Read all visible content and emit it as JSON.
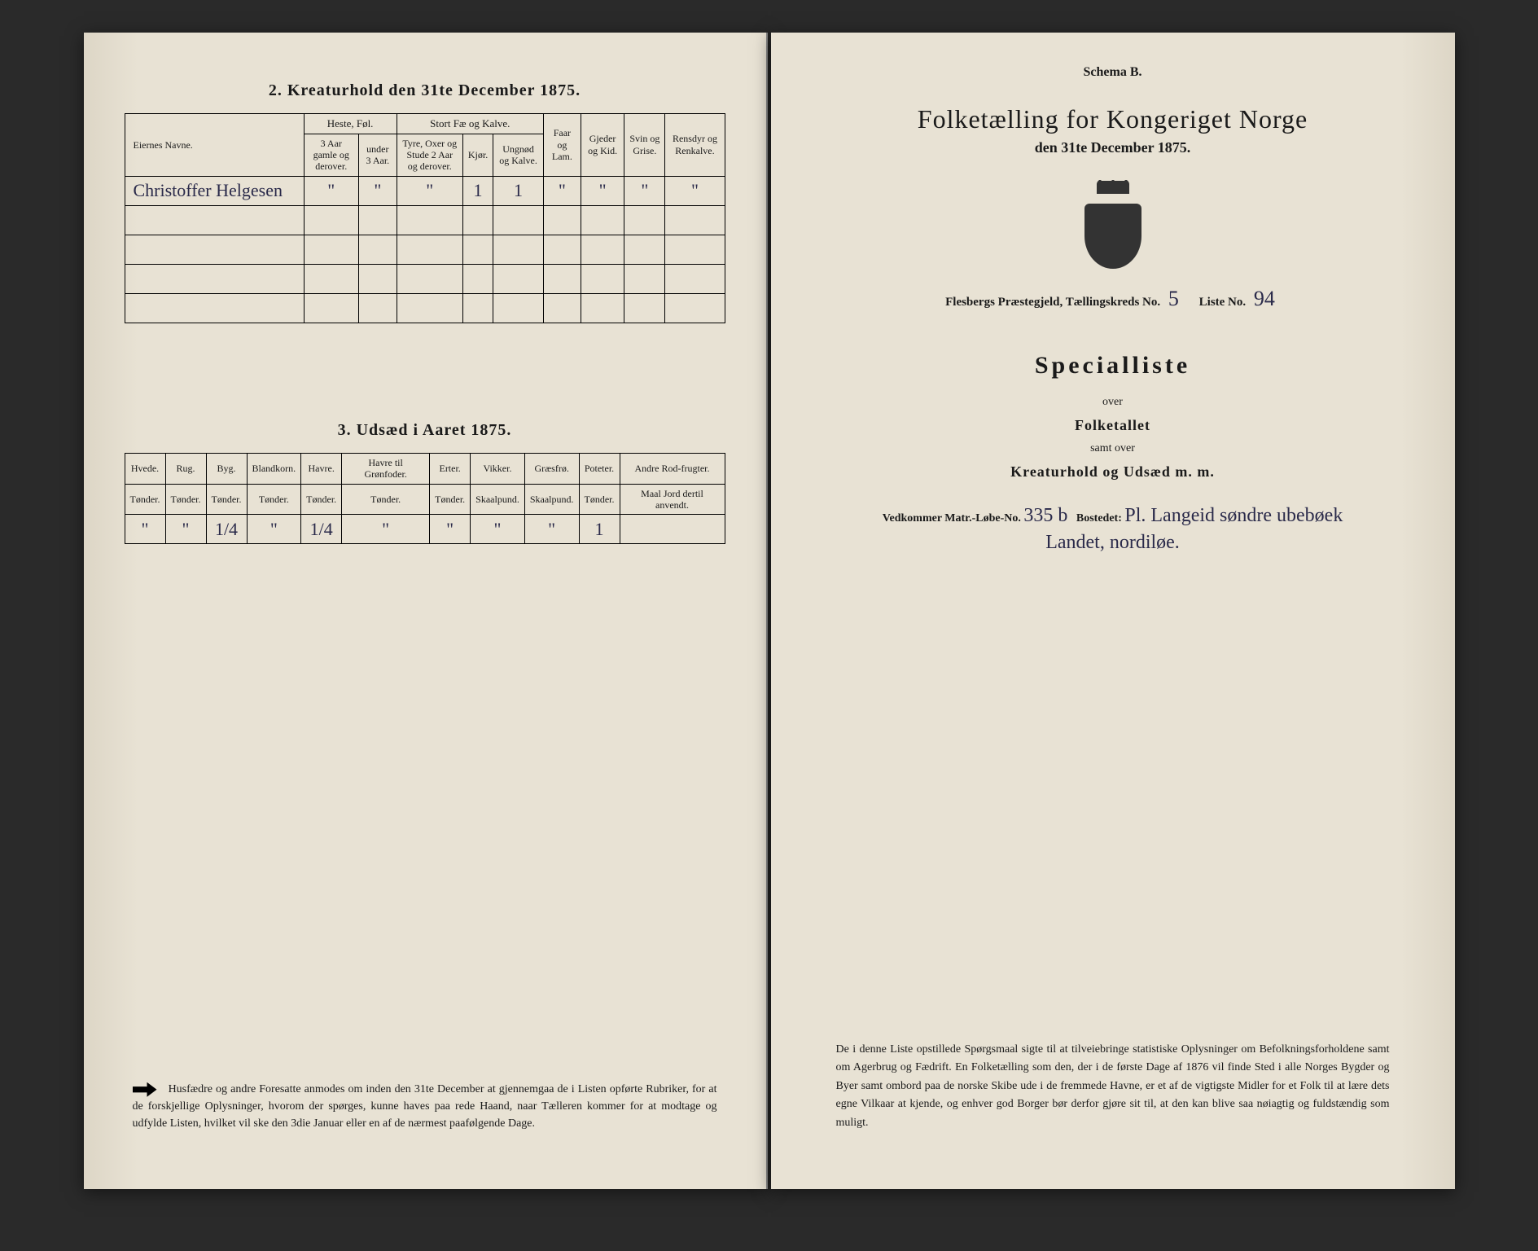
{
  "left_page": {
    "section2": {
      "title": "2. Kreaturhold den 31te December 1875.",
      "columns": {
        "owner": "Eiernes Navne.",
        "horses_group": "Heste, Føl.",
        "horses_sub1": "3 Aar gamle og derover.",
        "horses_sub2": "under 3 Aar.",
        "cattle_group": "Stort Fæ og Kalve.",
        "cattle_sub1": "Tyre, Oxer og Stude 2 Aar og derover.",
        "cattle_sub2": "Kjør.",
        "cattle_sub3": "Ungnød og Kalve.",
        "sheep": "Faar og Lam.",
        "goats": "Gjeder og Kid.",
        "pigs": "Svin og Grise.",
        "reindeer": "Rensdyr og Renkalve."
      },
      "rows": [
        {
          "owner": "Christoffer Helgesen",
          "h1": "\"",
          "h2": "\"",
          "c1": "\"",
          "c2": "1",
          "c3": "1",
          "sheep": "\"",
          "goats": "\"",
          "pigs": "\"",
          "reindeer": "\""
        }
      ]
    },
    "section3": {
      "title": "3. Udsæd i Aaret 1875.",
      "columns": {
        "wheat": "Hvede.",
        "wheat_u": "Tønder.",
        "rye": "Rug.",
        "rye_u": "Tønder.",
        "barley": "Byg.",
        "barley_u": "Tønder.",
        "mixed": "Blandkorn.",
        "mixed_u": "Tønder.",
        "oats": "Havre.",
        "oats_u": "Tønder.",
        "oats_green": "Havre til Grønfoder.",
        "oats_green_u": "Tønder.",
        "peas": "Erter.",
        "peas_u": "Tønder.",
        "vetches": "Vikker.",
        "vetches_u": "Skaalpund.",
        "grass": "Græsfrø.",
        "grass_u": "Skaalpund.",
        "potatoes": "Poteter.",
        "potatoes_u": "Tønder.",
        "roots": "Andre Rod-frugter.",
        "roots_u": "Maal Jord dertil anvendt."
      },
      "row": {
        "wheat": "\"",
        "rye": "\"",
        "barley": "1/4",
        "mixed": "\"",
        "oats": "1/4",
        "oats_green": "\"",
        "peas": "\"",
        "vetches": "\"",
        "grass": "\"",
        "potatoes": "1",
        "roots": ""
      }
    },
    "notice": "Husfædre og andre Foresatte anmodes om inden den 31te December at gjennemgaa de i Listen opførte Rubriker, for at de forskjellige Oplysninger, hvorom der spørges, kunne haves paa rede Haand, naar Tælleren kommer for at modtage og udfylde Listen, hvilket vil ske den 3die Januar eller en af de nærmest paafølgende Dage."
  },
  "right_page": {
    "schema": "Schema B.",
    "main_title": "Folketælling for Kongeriget Norge",
    "date": "den 31te December 1875.",
    "parish_label": "Flesbergs Præstegjeld, Tællingskreds No.",
    "kreds_no": "5",
    "liste_label": "Liste No.",
    "liste_no": "94",
    "special_title": "Specialliste",
    "over": "over",
    "folketallet": "Folketallet",
    "samt_over": "samt over",
    "kreatur": "Kreaturhold og Udsæd m. m.",
    "matr_label": "Vedkommer Matr.-Løbe-No.",
    "matr_no": "335 b",
    "bosted_label": "Bostedet:",
    "bosted": "Pl. Langeid søndre ubebøek",
    "bosted_line2": "Landet, nordiløe.",
    "notice": "De i denne Liste opstillede Spørgsmaal sigte til at tilveiebringe statistiske Oplysninger om Befolkningsforholdene samt om Agerbrug og Fædrift. En Folketælling som den, der i de første Dage af 1876 vil finde Sted i alle Norges Bygder og Byer samt ombord paa de norske Skibe ude i de fremmede Havne, er et af de vigtigste Midler for et Folk til at lære dets egne Vilkaar at kjende, og enhver god Borger bør derfor gjøre sit til, at den kan blive saa nøiagtig og fuldstændig som muligt."
  },
  "colors": {
    "paper": "#e8e2d4",
    "ink": "#1a1a1a",
    "handwriting": "#2a2a4a",
    "background": "#2a2a2a"
  }
}
